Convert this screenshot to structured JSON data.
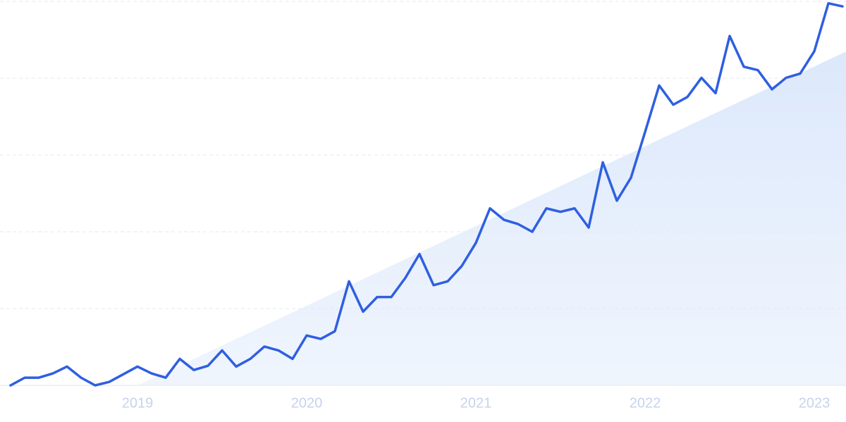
{
  "chart_data": {
    "type": "line",
    "categories": [
      null,
      null,
      null,
      null,
      null,
      null,
      null,
      null,
      null,
      "2019",
      null,
      null,
      null,
      null,
      null,
      null,
      null,
      null,
      null,
      null,
      null,
      "2020",
      null,
      null,
      null,
      null,
      null,
      null,
      null,
      null,
      null,
      null,
      null,
      "2021",
      null,
      null,
      null,
      null,
      null,
      null,
      null,
      null,
      null,
      null,
      null,
      "2022",
      null,
      null,
      null,
      null,
      null,
      null,
      null,
      null,
      null,
      null,
      null,
      "2023",
      null,
      null
    ],
    "series": [
      {
        "color": "#2f5fe0",
        "values": [
          0,
          2,
          2,
          3.1,
          4.9,
          2,
          0,
          0.9,
          2.9,
          4.9,
          3.1,
          2,
          6.9,
          4,
          5.1,
          9.1,
          4.9,
          6.9,
          10.1,
          9.1,
          6.9,
          13,
          12.1,
          14.1,
          27.1,
          19.2,
          23,
          23,
          28,
          34.2,
          26.1,
          27.1,
          31.1,
          37.1,
          46.1,
          43.1,
          42,
          40,
          46.1,
          45.2,
          46.1,
          41.1,
          58.1,
          48.1,
          54.1,
          66,
          78.1,
          73.1,
          75.1,
          80.1,
          76.1,
          91,
          83,
          82.1,
          77.1,
          80.1,
          81.2,
          87,
          99.5,
          98.7
        ]
      }
    ],
    "trend": {
      "color": "#dce8fb",
      "values": [
        null,
        null,
        null,
        null,
        null,
        null,
        null,
        null,
        null,
        0,
        null,
        null,
        null,
        null,
        null,
        null,
        null,
        null,
        null,
        null,
        null,
        null,
        null,
        null,
        null,
        null,
        null,
        null,
        null,
        null,
        null,
        null,
        null,
        null,
        null,
        null,
        null,
        null,
        null,
        null,
        null,
        null,
        null,
        null,
        null,
        null,
        null,
        null,
        null,
        null,
        null,
        null,
        null,
        null,
        null,
        null,
        null,
        null,
        null,
        86.5
      ]
    },
    "ylim": [
      0,
      100
    ],
    "yticks": [
      0,
      20,
      40,
      60,
      80,
      100
    ],
    "grid": true
  }
}
